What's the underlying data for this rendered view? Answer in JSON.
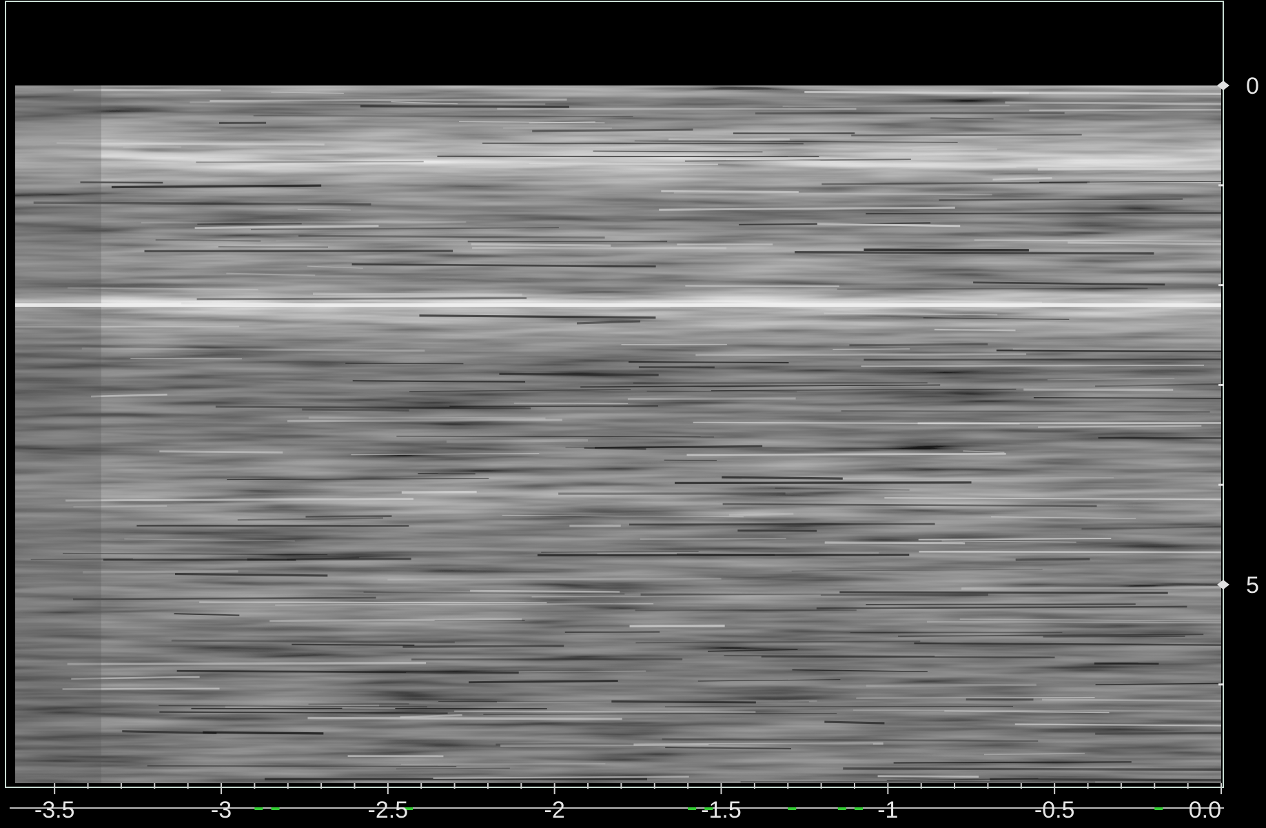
{
  "chart_data": {
    "type": "heatmap",
    "description_colormap": "grayscale",
    "x_ticks": [
      "-3.5",
      "-3",
      "-2.5",
      "-2",
      "-1.5",
      "-1",
      "-0.5",
      "0.0"
    ],
    "x_tick_values": [
      -3.5,
      -3,
      -2.5,
      -2,
      -1.5,
      -1,
      -0.5,
      0.0
    ],
    "xlim": [
      -3.55,
      0.0
    ],
    "y_ticks": [
      "0",
      "5"
    ],
    "y_tick_values": [
      0,
      5
    ],
    "ylim": [
      0,
      7
    ],
    "y_inverted": true,
    "bright_reflector_depth": 2.2,
    "colors": {
      "background": "#000000",
      "frame": "#c8dcd2",
      "marker": "#33cc33"
    }
  }
}
